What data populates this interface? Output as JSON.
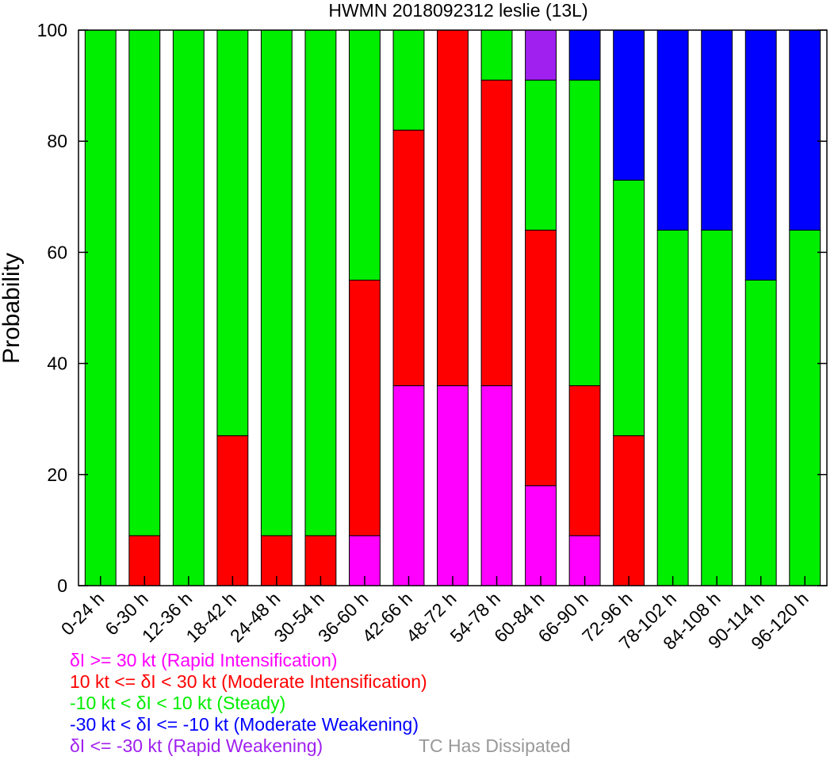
{
  "chart_data": {
    "type": "bar",
    "stacked": true,
    "title": "HWMN 2018092312 leslie (13L)",
    "xlabel": "",
    "ylabel": "Probability",
    "ylim": [
      0,
      100
    ],
    "yticks": [
      "0",
      "20",
      "40",
      "60",
      "80",
      "100"
    ],
    "categories": [
      "0-24 h",
      "6-30 h",
      "12-36 h",
      "18-42 h",
      "24-48 h",
      "30-54 h",
      "36-60 h",
      "42-66 h",
      "48-72 h",
      "54-78 h",
      "60-84 h",
      "66-90 h",
      "72-96 h",
      "78-102 h",
      "84-108 h",
      "90-114 h",
      "96-120 h"
    ],
    "series": [
      {
        "key": "ri",
        "color": "#ff00ff",
        "values": [
          0,
          0,
          0,
          0,
          0,
          0,
          9,
          36,
          36,
          36,
          18,
          9,
          0,
          0,
          0,
          0,
          0
        ]
      },
      {
        "key": "mi",
        "color": "#ff0000",
        "values": [
          0,
          9,
          0,
          27,
          9,
          9,
          46,
          46,
          64,
          55,
          46,
          27,
          27,
          0,
          0,
          0,
          0
        ]
      },
      {
        "key": "steady",
        "color": "#00ee00",
        "values": [
          100,
          91,
          100,
          73,
          91,
          91,
          45,
          18,
          0,
          9,
          27,
          55,
          46,
          64,
          64,
          55,
          64
        ]
      },
      {
        "key": "mw",
        "color": "#0000ff",
        "values": [
          0,
          0,
          0,
          0,
          0,
          0,
          0,
          0,
          0,
          0,
          0,
          9,
          27,
          36,
          36,
          45,
          36
        ]
      },
      {
        "key": "rw",
        "color": "#a020f0",
        "values": [
          0,
          0,
          0,
          0,
          0,
          0,
          0,
          0,
          0,
          0,
          9,
          0,
          0,
          0,
          0,
          0,
          0
        ]
      }
    ],
    "legend": [
      {
        "text": "δI >= 30 kt (Rapid Intensification)",
        "color": "#ff00ff"
      },
      {
        "text": "10 kt <= δI < 30 kt (Moderate Intensification)",
        "color": "#ff0000"
      },
      {
        "text": "-10 kt < δI < 10 kt (Steady)",
        "color": "#00ee00"
      },
      {
        "text": "-30 kt < δI <= -10 kt (Moderate Weakening)",
        "color": "#0000ff"
      },
      {
        "text": "δI <= -30 kt (Rapid Weakening)",
        "color": "#a020f0"
      }
    ],
    "dissipated_label": {
      "text": "TC Has Dissipated",
      "color": "#999999"
    }
  }
}
